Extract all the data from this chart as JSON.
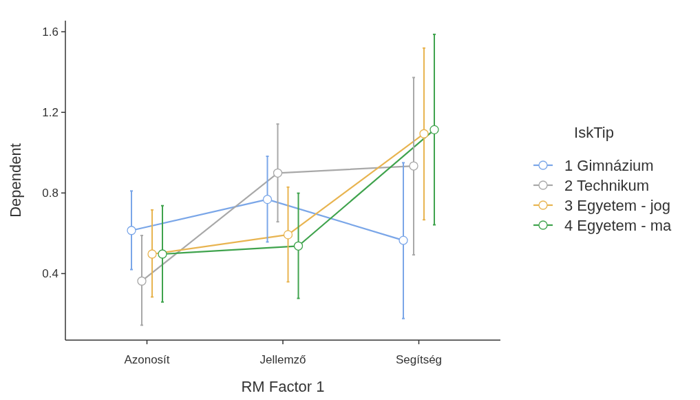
{
  "chart_data": {
    "type": "line",
    "xlabel": "RM Factor 1",
    "ylabel": "Dependent",
    "legend_title": "IskTip",
    "categories": [
      "Azonosít",
      "Jellemző",
      "Segítség"
    ],
    "series": [
      {
        "name": "1 Gimnázium",
        "color": "#7aa6e8",
        "values": [
          0.614,
          0.768,
          0.565
        ],
        "errors": [
          [
            0.42,
            0.81
          ],
          [
            0.557,
            0.982
          ],
          [
            0.177,
            0.95
          ]
        ]
      },
      {
        "name": "2 Technikum",
        "color": "#a8a8a8",
        "values": [
          0.363,
          0.899,
          0.934
        ],
        "errors": [
          [
            0.144,
            0.589
          ],
          [
            0.657,
            1.142
          ],
          [
            0.493,
            1.373
          ]
        ]
      },
      {
        "name": "3 Egyetem - jog",
        "color": "#e8b450",
        "values": [
          0.497,
          0.593,
          1.094
        ],
        "errors": [
          [
            0.284,
            0.716
          ],
          [
            0.359,
            0.829
          ],
          [
            0.667,
            1.519
          ]
        ]
      },
      {
        "name": "4 Egyetem - ma",
        "color": "#3fa34d",
        "values": [
          0.497,
          0.537,
          1.114
        ],
        "errors": [
          [
            0.259,
            0.737
          ],
          [
            0.277,
            0.799
          ],
          [
            0.642,
            1.587
          ]
        ]
      }
    ],
    "ylim": [
      0.07,
      1.655
    ],
    "yticks": [
      0.4,
      0.8,
      1.2,
      1.6
    ],
    "grid": false,
    "legend": "right",
    "marker": "circle",
    "line_style": "solid"
  }
}
